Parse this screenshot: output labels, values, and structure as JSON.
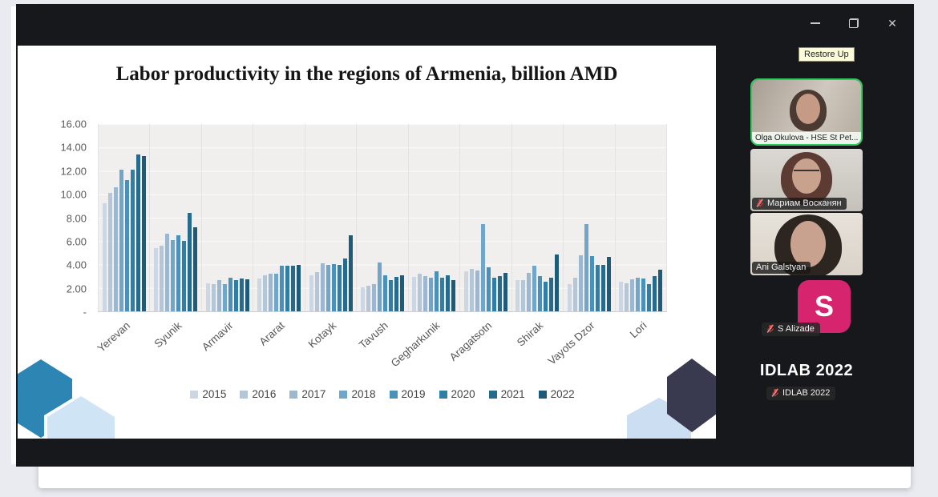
{
  "window": {
    "tooltip": "Restore Up",
    "controls": {
      "close_glyph": "✕"
    }
  },
  "slide": {
    "title": "Labor productivity in the regions of Armenia, billion AMD"
  },
  "chart_data": {
    "type": "bar",
    "title": "Labor productivity in the regions of Armenia, billion AMD",
    "xlabel": "",
    "ylabel": "",
    "ylim": [
      0,
      16
    ],
    "grid": true,
    "legend_position": "bottom",
    "y_ticks": [
      "16.00",
      "14.00",
      "12.00",
      "10.00",
      "8.00",
      "6.00",
      "4.00",
      "2.00",
      "-"
    ],
    "categories": [
      "Yerevan",
      "Syunik",
      "Armavir",
      "Ararat",
      "Kotayk",
      "Tavush",
      "Gegharkunik",
      "Aragatsotn",
      "Shirak",
      "Vayots Dzor",
      "Lori"
    ],
    "series": [
      {
        "name": "2015",
        "color": "#ccd7e3",
        "values": [
          9.2,
          5.4,
          2.4,
          2.8,
          3.05,
          2.05,
          2.95,
          3.45,
          2.7,
          2.35,
          2.5
        ]
      },
      {
        "name": "2016",
        "color": "#b4c7d9",
        "values": [
          10.1,
          5.6,
          2.3,
          3.1,
          3.35,
          2.2,
          3.2,
          3.65,
          2.7,
          2.9,
          2.4
        ]
      },
      {
        "name": "2017",
        "color": "#9cb8d0",
        "values": [
          10.6,
          6.6,
          2.7,
          3.2,
          4.1,
          2.35,
          3.0,
          3.5,
          3.25,
          4.8,
          2.75
        ]
      },
      {
        "name": "2018",
        "color": "#6fa6ca",
        "values": [
          12.1,
          6.1,
          2.3,
          3.2,
          3.95,
          4.2,
          2.9,
          7.45,
          3.9,
          7.45,
          2.85
        ]
      },
      {
        "name": "2019",
        "color": "#4991bb",
        "values": [
          11.2,
          6.5,
          2.9,
          3.9,
          4.05,
          3.05,
          3.4,
          3.75,
          3.0,
          4.75,
          2.8
        ]
      },
      {
        "name": "2020",
        "color": "#2f7ea6",
        "values": [
          12.1,
          6.0,
          2.7,
          3.9,
          3.95,
          2.65,
          2.9,
          2.9,
          2.5,
          3.95,
          2.35
        ]
      },
      {
        "name": "2021",
        "color": "#256b8e",
        "values": [
          13.4,
          8.4,
          2.8,
          3.9,
          4.5,
          2.95,
          3.1,
          3.0,
          2.85,
          3.95,
          3.0
        ]
      },
      {
        "name": "2022",
        "color": "#1d5b7a",
        "values": [
          13.3,
          7.2,
          2.75,
          4.0,
          6.5,
          3.05,
          2.7,
          3.3,
          4.85,
          4.65,
          3.55
        ]
      }
    ]
  },
  "sidebar": {
    "colors": {
      "active_speaker_border": "#2ecc5e",
      "muted_mic": "#e23b3b",
      "avatar_pink": "#d6246e"
    },
    "participants": [
      {
        "name": "Olga Okulova - HSE St Pet...",
        "speaking": true,
        "muted": false,
        "type": "video"
      },
      {
        "name": "Мариам Восканян",
        "speaking": false,
        "muted": true,
        "type": "video"
      },
      {
        "name": "Ani Galstyan",
        "speaking": false,
        "muted": false,
        "type": "video"
      },
      {
        "name": "S Alizade",
        "avatar_letter": "S",
        "speaking": false,
        "muted": true,
        "type": "avatar"
      },
      {
        "name": "IDLAB 2022",
        "display_name": "IDLAB 2022",
        "speaking": false,
        "muted": true,
        "type": "name"
      }
    ]
  }
}
